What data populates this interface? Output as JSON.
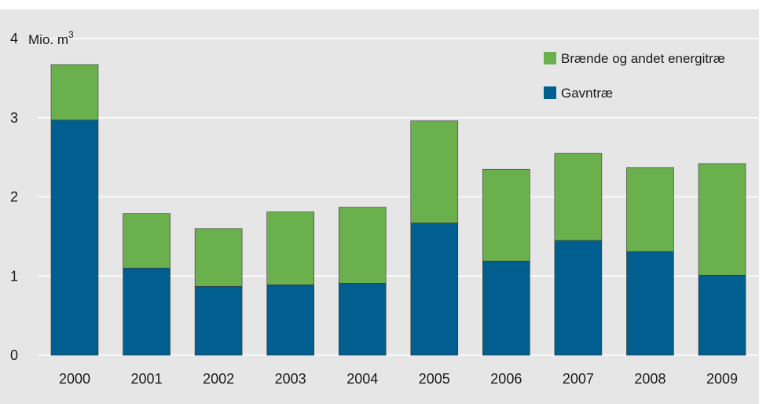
{
  "chart_data": {
    "type": "bar",
    "stacked": true,
    "unit_label": "Mio. m",
    "unit_superscript": "3",
    "categories": [
      "2000",
      "2001",
      "2002",
      "2003",
      "2004",
      "2005",
      "2006",
      "2007",
      "2008",
      "2009"
    ],
    "series": [
      {
        "name": "Gavntræ",
        "color": "#005f8f",
        "values": [
          2.97,
          1.1,
          0.87,
          0.89,
          0.91,
          1.67,
          1.19,
          1.45,
          1.31,
          1.01
        ]
      },
      {
        "name": "Brænde og andet energitræ",
        "color": "#6ab04c",
        "values": [
          0.7,
          0.69,
          0.73,
          0.92,
          0.96,
          1.29,
          1.16,
          1.1,
          1.06,
          1.41
        ]
      }
    ],
    "legend_order": [
      "Brænde og andet energitræ",
      "Gavntræ"
    ],
    "yticks": [
      0,
      1,
      2,
      3,
      4
    ],
    "ylim": [
      0,
      4
    ],
    "grid": true,
    "legend_position": "top-right",
    "plot_background": "#e6e6e6",
    "gridline_color": "#ffffff"
  }
}
